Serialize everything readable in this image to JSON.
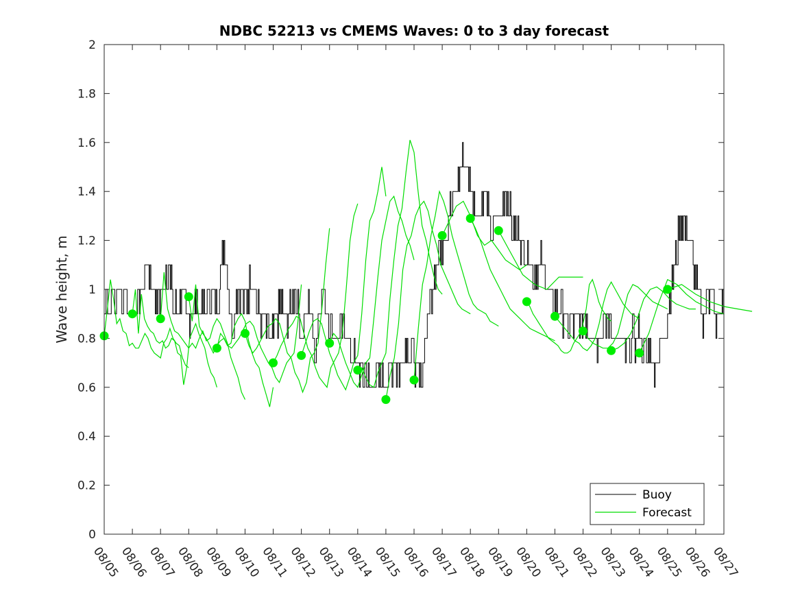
{
  "chart_data": {
    "type": "line",
    "title": "NDBC 52213 vs CMEMS Waves: 0 to 3 day forecast",
    "xlabel": "",
    "ylabel": "Wave height, m",
    "x_tick_labels": [
      "08/05",
      "08/06",
      "08/07",
      "08/08",
      "08/09",
      "08/10",
      "08/11",
      "08/12",
      "08/13",
      "08/14",
      "08/15",
      "08/16",
      "08/17",
      "08/18",
      "08/19",
      "08/20",
      "08/21",
      "08/22",
      "08/23",
      "08/24",
      "08/25",
      "08/26",
      "08/27"
    ],
    "y_ticks": [
      0,
      0.2,
      0.4,
      0.6,
      0.8,
      1,
      1.2,
      1.4,
      1.6,
      1.8,
      2
    ],
    "y_tick_labels": [
      "0",
      "0.2",
      "0.4",
      "0.6",
      "0.8",
      "1",
      "1.2",
      "1.4",
      "1.6",
      "1.8",
      "2"
    ],
    "xlim": [
      "08/05",
      "08/27"
    ],
    "ylim": [
      0,
      2
    ],
    "grid": false,
    "legend_position": "bottom-right",
    "colors": {
      "buoy": "#000000",
      "forecast": "#00dd00",
      "markers": "#00ee00"
    },
    "buoy": {
      "name": "Buoy",
      "x": [
        "08/05",
        "08/05",
        "08/06",
        "08/06",
        "08/06",
        "08/06",
        "08/07",
        "08/07",
        "08/07",
        "08/07",
        "08/08",
        "08/08",
        "08/08",
        "08/08",
        "08/09",
        "08/09",
        "08/09",
        "08/09",
        "08/10",
        "08/10",
        "08/10",
        "08/10",
        "08/11",
        "08/11",
        "08/11",
        "08/11",
        "08/12",
        "08/12",
        "08/12",
        "08/12",
        "08/13",
        "08/13",
        "08/13",
        "08/13",
        "08/14",
        "08/14",
        "08/14",
        "08/14",
        "08/15",
        "08/15",
        "08/15",
        "08/15",
        "08/16",
        "08/16",
        "08/16",
        "08/16",
        "08/17",
        "08/17",
        "08/17",
        "08/17",
        "08/18",
        "08/18",
        "08/18",
        "08/18",
        "08/19",
        "08/19",
        "08/19",
        "08/19",
        "08/20",
        "08/20",
        "08/20",
        "08/20",
        "08/21",
        "08/21",
        "08/21",
        "08/21",
        "08/22",
        "08/22",
        "08/22",
        "08/22",
        "08/23",
        "08/23",
        "08/23",
        "08/23",
        "08/24",
        "08/24",
        "08/24",
        "08/24",
        "08/25",
        "08/25",
        "08/25",
        "08/25",
        "08/26",
        "08/26",
        "08/26",
        "08/26",
        "08/27"
      ],
      "y": [
        0.95,
        1.0,
        0.9,
        0.95,
        1.1,
        1.0,
        0.95,
        1.1,
        0.9,
        1.0,
        0.85,
        0.95,
        0.9,
        1.0,
        0.9,
        1.2,
        0.85,
        1.0,
        0.95,
        1.05,
        0.9,
        0.85,
        0.8,
        0.95,
        0.85,
        1.0,
        0.8,
        0.95,
        0.75,
        1.05,
        0.85,
        0.8,
        0.85,
        0.75,
        0.7,
        0.65,
        0.6,
        0.65,
        0.6,
        0.7,
        0.65,
        0.8,
        0.7,
        0.6,
        0.9,
        1.1,
        1.2,
        1.3,
        1.4,
        1.55,
        1.45,
        1.3,
        1.4,
        1.25,
        1.3,
        1.4,
        1.25,
        1.2,
        1.15,
        1.05,
        1.1,
        1.0,
        0.95,
        0.9,
        0.85,
        0.85,
        0.9,
        0.85,
        0.8,
        0.85,
        0.85,
        0.8,
        0.75,
        0.8,
        0.8,
        0.75,
        0.7,
        0.75,
        0.9,
        1.1,
        1.3,
        1.2,
        1.05,
        0.9,
        1.0,
        0.85,
        0.95
      ]
    },
    "series": [
      {
        "name": "Forecast",
        "start": "08/05",
        "values": [
          0.81,
          0.92,
          1.04,
          0.96,
          0.86,
          0.88,
          0.83,
          0.82,
          0.77,
          0.78,
          0.76,
          0.76,
          0.79,
          0.82,
          0.8,
          0.76,
          0.74,
          0.73,
          0.72,
          0.78,
          0.8,
          0.84,
          0.8,
          0.78,
          0.77,
          0.72,
          0.69,
          0.68
        ]
      },
      {
        "name": "",
        "start": "08/06",
        "values": [
          0.9,
          1.0,
          0.82,
          0.98,
          0.88,
          0.85,
          0.83,
          0.82,
          0.79,
          0.78,
          0.79,
          0.76,
          0.77,
          0.8,
          0.79,
          0.74,
          0.73,
          0.61,
          0.68,
          0.8,
          0.83,
          0.86,
          0.82,
          0.79,
          0.76,
          0.7,
          0.66,
          0.64,
          0.6
        ]
      },
      {
        "name": "",
        "start": "08/07",
        "values": [
          0.88,
          1.07,
          0.92,
          0.87,
          0.83,
          0.82,
          0.8,
          0.78,
          0.76,
          0.78,
          0.76,
          0.8,
          0.83,
          0.79,
          0.8,
          0.85,
          0.88,
          0.86,
          0.82,
          0.78,
          0.72,
          0.68,
          0.64,
          0.58,
          0.55
        ]
      },
      {
        "name": "",
        "start": "08/08",
        "values": [
          0.97,
          0.87,
          1.02,
          0.85,
          0.82,
          0.8,
          0.77,
          0.74,
          0.77,
          0.79,
          0.8,
          0.77,
          0.78,
          0.85,
          0.88,
          0.9,
          0.87,
          0.79,
          0.74,
          0.7,
          0.68,
          0.62,
          0.57,
          0.52,
          0.6
        ]
      },
      {
        "name": "",
        "start": "08/09",
        "values": [
          0.76,
          0.82,
          0.8,
          0.77,
          0.76,
          0.78,
          0.8,
          0.83,
          0.86,
          0.87,
          0.85,
          0.8,
          0.76,
          0.73,
          0.7,
          0.68,
          0.64,
          0.62,
          0.66,
          0.7,
          0.72,
          0.74,
          0.86,
          1.02
        ]
      },
      {
        "name": "",
        "start": "08/10",
        "values": [
          0.82,
          0.77,
          0.74,
          0.76,
          0.79,
          0.82,
          0.85,
          0.86,
          0.88,
          0.86,
          0.8,
          0.74,
          0.72,
          0.66,
          0.63,
          0.58,
          0.62,
          0.72,
          0.74,
          0.78,
          0.92,
          1.1,
          1.25
        ]
      },
      {
        "name": "",
        "start": "08/11",
        "values": [
          0.7,
          0.73,
          0.77,
          0.8,
          0.84,
          0.86,
          0.89,
          0.88,
          0.82,
          0.76,
          0.73,
          0.68,
          0.64,
          0.62,
          0.6,
          0.68,
          0.71,
          0.74,
          0.82,
          1.0,
          1.2,
          1.3,
          1.35
        ]
      },
      {
        "name": "",
        "start": "08/12",
        "values": [
          0.73,
          0.78,
          0.83,
          0.87,
          0.88,
          0.86,
          0.8,
          0.74,
          0.7,
          0.65,
          0.62,
          0.59,
          0.64,
          0.7,
          0.73,
          0.9,
          1.12,
          1.28,
          1.32,
          1.4,
          1.5,
          1.38
        ]
      },
      {
        "name": "",
        "start": "08/13",
        "values": [
          0.78,
          0.82,
          0.8,
          0.75,
          0.7,
          0.66,
          0.62,
          0.6,
          0.65,
          0.7,
          0.72,
          0.88,
          1.05,
          1.2,
          1.28,
          1.36,
          1.38,
          1.32,
          1.28,
          1.22,
          1.18,
          1.12
        ]
      },
      {
        "name": "",
        "start": "08/14",
        "values": [
          0.67,
          0.68,
          0.64,
          0.61,
          0.6,
          0.66,
          0.7,
          0.74,
          0.96,
          1.12,
          1.26,
          1.33,
          1.48,
          1.61,
          1.56,
          1.4,
          1.26,
          1.2,
          1.12,
          1.05,
          1.0,
          0.98
        ]
      },
      {
        "name": "",
        "start": "08/15",
        "values": [
          0.55,
          0.65,
          0.72,
          0.86,
          1.08,
          1.18,
          1.22,
          1.3,
          1.34,
          1.36,
          1.32,
          1.24,
          1.18,
          1.1,
          1.06,
          1.02,
          0.98,
          0.94,
          0.92,
          0.91,
          0.9
        ]
      },
      {
        "name": "",
        "start": "08/16",
        "values": [
          0.63,
          0.84,
          1.02,
          1.1,
          1.22,
          1.3,
          1.4,
          1.36,
          1.3,
          1.22,
          1.16,
          1.1,
          1.04,
          0.98,
          0.94,
          0.92,
          0.91,
          0.9,
          0.87,
          0.86,
          0.85
        ]
      },
      {
        "name": "",
        "start": "08/17",
        "values": [
          1.22,
          1.28,
          1.34,
          1.36,
          1.3,
          1.22,
          1.18,
          1.2,
          1.16,
          1.12,
          1.1,
          1.08,
          1.1
        ]
      },
      {
        "name": "",
        "start": "08/18",
        "values": [
          1.29,
          1.25,
          1.2,
          1.14,
          1.08,
          1.04,
          1.0,
          0.96,
          0.92,
          0.9,
          0.88,
          0.86,
          0.84,
          0.83,
          0.82,
          0.81,
          0.8,
          0.79
        ]
      },
      {
        "name": "",
        "start": "08/19",
        "values": [
          1.24,
          1.15,
          1.06,
          1.02,
          1.0,
          1.05,
          1.05,
          1.05
        ]
      },
      {
        "name": "",
        "start": "08/20",
        "values": [
          0.95,
          0.93,
          0.9,
          0.88,
          0.86,
          0.84,
          0.82,
          0.8,
          0.79,
          0.78,
          0.77,
          0.75,
          0.74,
          0.74,
          0.75,
          0.78,
          0.8,
          0.82,
          0.86,
          0.92,
          1.02,
          1.04,
          1.0,
          0.95,
          0.92,
          0.9,
          0.88,
          0.87
        ]
      },
      {
        "name": "",
        "start": "08/21",
        "values": [
          0.89,
          0.87,
          0.85,
          0.83,
          0.81,
          0.79,
          0.78,
          0.76,
          0.75,
          0.77,
          0.8,
          0.86,
          0.94,
          1.0,
          1.03,
          1.0,
          0.97,
          0.94,
          0.92,
          0.9,
          0.89,
          0.88
        ]
      },
      {
        "name": "",
        "start": "08/22",
        "values": [
          0.83,
          0.8,
          0.78,
          0.77,
          0.76,
          0.76,
          0.78,
          0.82,
          0.9,
          0.98,
          1.02,
          1.01,
          0.99,
          0.97,
          0.95,
          0.94,
          0.93,
          0.92
        ]
      },
      {
        "name": "",
        "start": "08/23",
        "values": [
          0.75,
          0.76,
          0.78,
          0.82,
          0.88,
          0.96,
          1.0,
          1.01,
          0.99,
          0.96,
          0.94,
          0.93,
          0.92,
          0.92
        ]
      },
      {
        "name": "",
        "start": "08/24",
        "values": [
          0.74,
          0.82,
          0.94,
          1.04,
          1.02,
          0.98,
          0.95,
          0.93,
          0.91,
          0.9
        ]
      },
      {
        "name": "",
        "start": "08/25",
        "values": [
          1.0,
          1.02,
          0.98,
          0.95,
          0.93,
          0.92,
          0.91
        ]
      }
    ],
    "forecast_markers": {
      "x": [
        "08/05",
        "08/06",
        "08/07",
        "08/08",
        "08/09",
        "08/10",
        "08/11",
        "08/12",
        "08/13",
        "08/14",
        "08/15",
        "08/16",
        "08/17",
        "08/18",
        "08/19",
        "08/20",
        "08/21",
        "08/22",
        "08/23",
        "08/24",
        "08/25"
      ],
      "y": [
        0.81,
        0.9,
        0.88,
        0.97,
        0.76,
        0.82,
        0.7,
        0.73,
        0.78,
        0.67,
        0.55,
        0.63,
        1.22,
        1.29,
        1.24,
        0.95,
        0.89,
        0.83,
        0.75,
        0.74,
        1.0
      ]
    },
    "legend": [
      {
        "label": "Buoy",
        "color": "#000000"
      },
      {
        "label": "Forecast",
        "color": "#00dd00"
      }
    ]
  }
}
